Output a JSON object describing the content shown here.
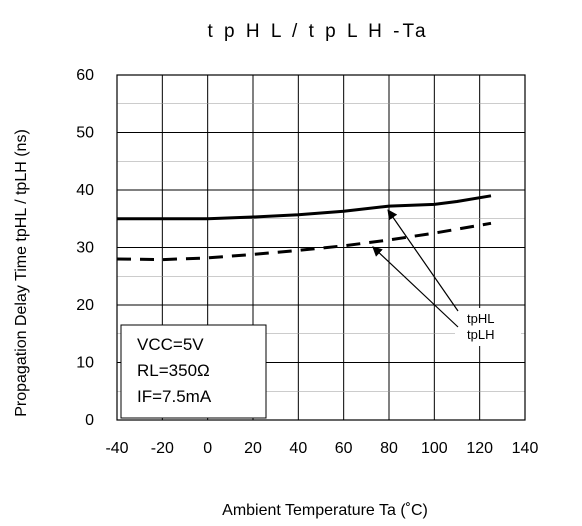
{
  "chart_data": {
    "type": "line",
    "title": "t p H L  /  t p L H  -Ta",
    "xlabel": "Ambient Temperature    Ta (˚C)",
    "ylabel": "Propagation Delay Time   tpHL / tpLH   (ns)",
    "xlim": [
      -40,
      140
    ],
    "ylim": [
      0,
      60
    ],
    "xticks": [
      -40,
      -20,
      0,
      20,
      40,
      60,
      80,
      100,
      120,
      140
    ],
    "yticks": [
      0,
      10,
      20,
      30,
      40,
      50,
      60
    ],
    "grid": true,
    "series": [
      {
        "name": "tpHL",
        "style": "solid",
        "x": [
          -40,
          -20,
          0,
          20,
          40,
          60,
          80,
          100,
          110,
          125
        ],
        "y": [
          35.0,
          35.0,
          35.0,
          35.3,
          35.7,
          36.3,
          37.2,
          37.5,
          38.0,
          39.0
        ]
      },
      {
        "name": "tpLH",
        "style": "dashed",
        "x": [
          -40,
          -20,
          0,
          20,
          40,
          60,
          80,
          100,
          125
        ],
        "y": [
          28.0,
          27.9,
          28.2,
          28.8,
          29.5,
          30.3,
          31.3,
          32.5,
          34.2
        ]
      }
    ],
    "conditions": [
      "VCC=5V",
      "RL=350Ω",
      "IF=7.5mA"
    ],
    "legend": [
      "tpHL",
      "tpLH"
    ]
  }
}
